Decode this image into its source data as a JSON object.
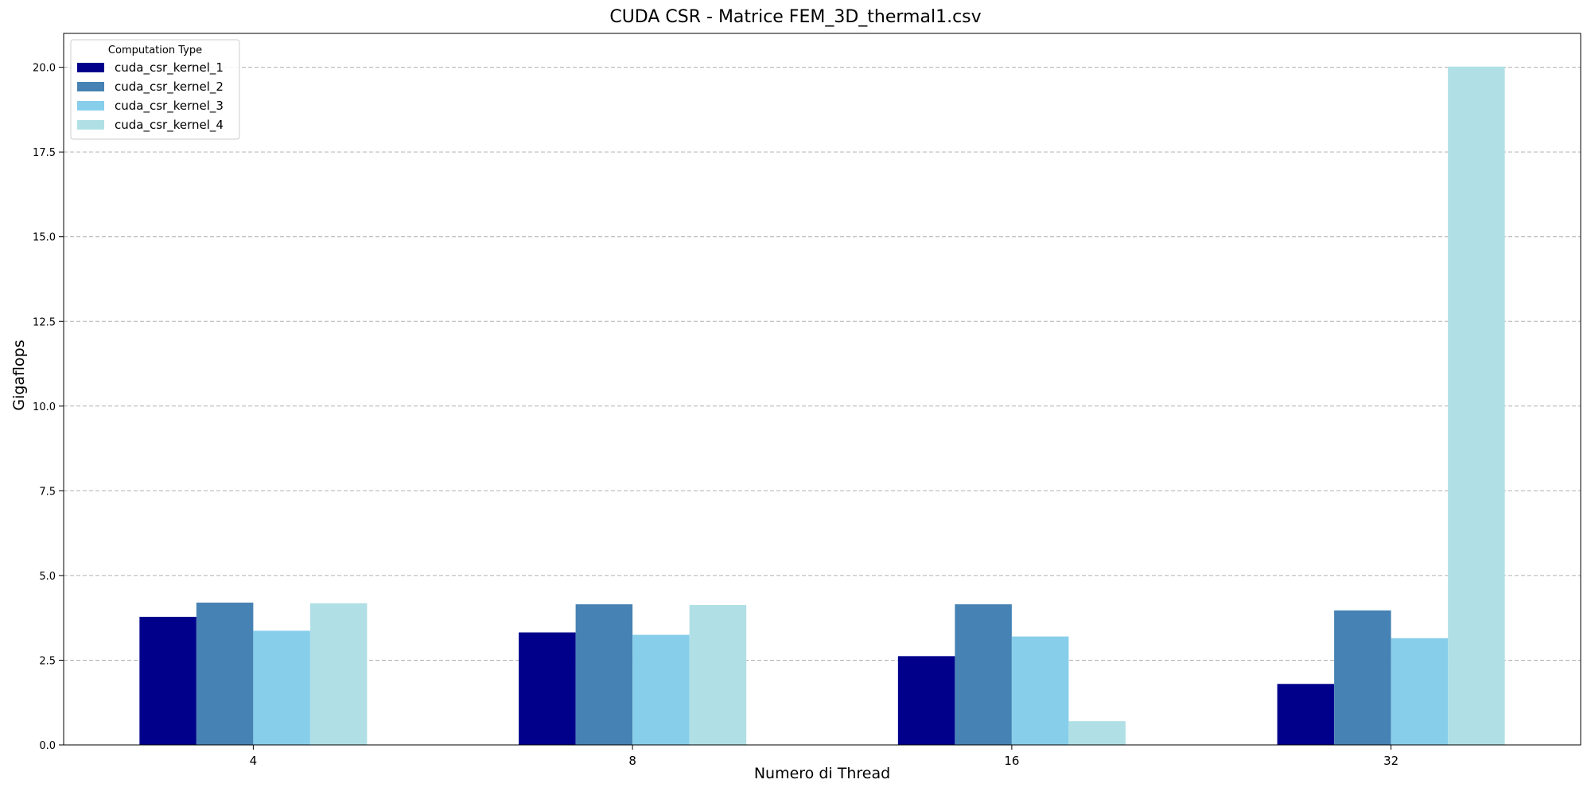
{
  "chart_data": {
    "type": "bar",
    "title": "CUDA CSR - Matrice FEM_3D_thermal1.csv",
    "xlabel": "Numero di Thread",
    "ylabel": "Gigaflops",
    "categories": [
      "4",
      "8",
      "16",
      "32"
    ],
    "series": [
      {
        "name": "cuda_csr_kernel_1",
        "color": "#00008b",
        "values": [
          3.78,
          3.32,
          2.62,
          1.8
        ]
      },
      {
        "name": "cuda_csr_kernel_2",
        "color": "#4682b4",
        "values": [
          4.2,
          4.15,
          4.15,
          3.97
        ]
      },
      {
        "name": "cuda_csr_kernel_3",
        "color": "#87ceeb",
        "values": [
          3.37,
          3.25,
          3.2,
          3.15
        ]
      },
      {
        "name": "cuda_csr_kernel_4",
        "color": "#b0e0e6",
        "values": [
          4.18,
          4.13,
          0.7,
          20.02
        ]
      }
    ],
    "ylim": [
      0,
      21
    ],
    "yticks": [
      0.0,
      2.5,
      5.0,
      7.5,
      10.0,
      12.5,
      15.0,
      17.5,
      20.0
    ],
    "ytick_labels": [
      "0.0",
      "2.5",
      "5.0",
      "7.5",
      "10.0",
      "12.5",
      "15.0",
      "17.5",
      "20.0"
    ],
    "grid": "y-dashed",
    "legend": {
      "title": "Computation Type",
      "placement": "top-left"
    }
  }
}
